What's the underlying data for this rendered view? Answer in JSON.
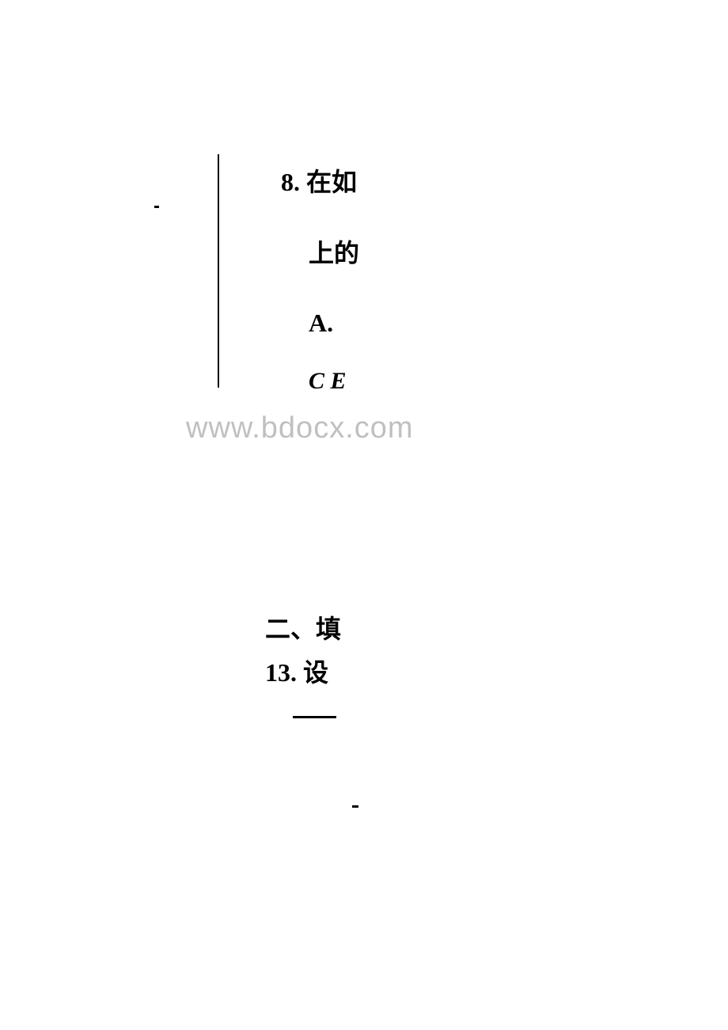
{
  "document": {
    "background_color": "#ffffff",
    "text_color": "#000000",
    "watermark_color": "#c0c0c0",
    "font_family": "SimSun",
    "font_size_main": 32
  },
  "question8": {
    "number_text": "8. 在如",
    "line2": "上的",
    "option_a": "A.",
    "option_c": "C  E"
  },
  "watermark": {
    "text": "www.bdocx.com"
  },
  "section2": {
    "header": "二、填",
    "question13": "13. 设"
  }
}
